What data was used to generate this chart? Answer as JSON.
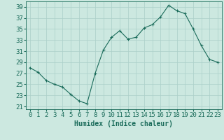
{
  "x": [
    0,
    1,
    2,
    3,
    4,
    5,
    6,
    7,
    8,
    9,
    10,
    11,
    12,
    13,
    14,
    15,
    16,
    17,
    18,
    19,
    20,
    21,
    22,
    23
  ],
  "y": [
    28.0,
    27.2,
    25.7,
    25.0,
    24.5,
    23.2,
    22.0,
    21.5,
    27.0,
    31.2,
    33.5,
    34.7,
    33.2,
    33.5,
    35.2,
    35.8,
    37.2,
    39.3,
    38.3,
    37.8,
    35.0,
    32.0,
    29.5,
    29.0
  ],
  "line_color": "#1a6b5a",
  "marker_color": "#1a6b5a",
  "bg_color": "#cce8e0",
  "grid_color": "#aacfc8",
  "xlabel": "Humidex (Indice chaleur)",
  "xlim": [
    -0.5,
    23.5
  ],
  "ylim": [
    20.5,
    40.0
  ],
  "yticks": [
    21,
    23,
    25,
    27,
    29,
    31,
    33,
    35,
    37,
    39
  ],
  "xticks": [
    0,
    1,
    2,
    3,
    4,
    5,
    6,
    7,
    8,
    9,
    10,
    11,
    12,
    13,
    14,
    15,
    16,
    17,
    18,
    19,
    20,
    21,
    22,
    23
  ],
  "xlabel_fontsize": 7,
  "tick_fontsize": 6.5
}
